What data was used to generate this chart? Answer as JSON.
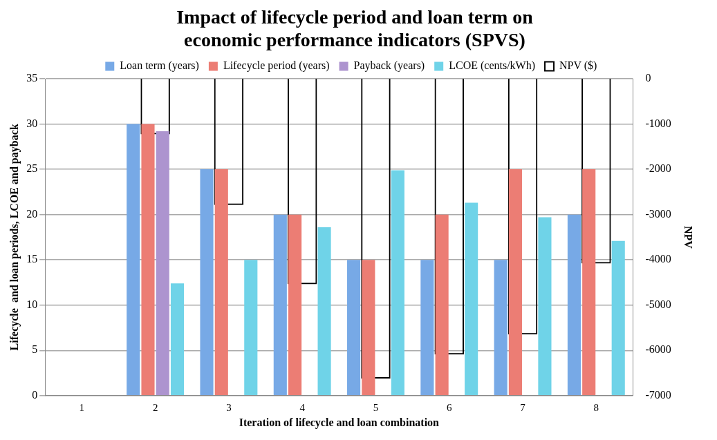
{
  "chart_data": {
    "type": "bar",
    "title": "Impact of lifecycle period and loan term on economic performance indicators (SPVS)",
    "xlabel": "Iteration of lifecycle and loan combination",
    "ylabel": "Lifecycle  and loan periods, LCOE and payback",
    "y2label": "NPV",
    "categories": [
      "1",
      "2",
      "3",
      "4",
      "5",
      "6",
      "7",
      "8"
    ],
    "series": [
      {
        "name": "Loan term (years)",
        "color": "#77a9e6",
        "values": [
          null,
          30,
          25,
          20,
          15,
          15,
          15,
          20
        ]
      },
      {
        "name": "Lifecycle period (years)",
        "color": "#ec7d74",
        "values": [
          null,
          30,
          25,
          20,
          15,
          20,
          25,
          25
        ]
      },
      {
        "name": "Payback (years)",
        "color": "#ad94cf",
        "values": [
          null,
          29.2,
          null,
          null,
          null,
          null,
          null,
          null
        ]
      },
      {
        "name": "LCOE (cents/kWh)",
        "color": "#6fd3e8",
        "values": [
          null,
          12.4,
          15,
          18.6,
          24.9,
          21.3,
          19.7,
          17.1
        ]
      },
      {
        "name": "NPV ($)",
        "color": "#000000",
        "axis": "y2",
        "values": [
          null,
          -1230,
          -2790,
          -4540,
          -6620,
          -6090,
          -5650,
          -4080
        ]
      }
    ],
    "ylim": [
      0,
      35
    ],
    "yticks": [
      0,
      5,
      10,
      15,
      20,
      25,
      30,
      35
    ],
    "y2lim": [
      -7000,
      0
    ],
    "y2ticks": [
      -7000,
      -6000,
      -5000,
      -4000,
      -3000,
      -2000,
      -1000,
      0
    ],
    "grid": "y",
    "legend": "top"
  }
}
